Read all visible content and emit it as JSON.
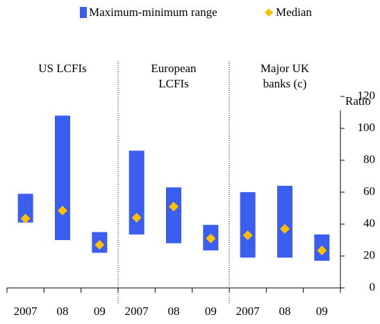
{
  "chart_data": {
    "type": "range",
    "y_unit_label": "Ratio",
    "categories": [
      "2007",
      "08",
      "09",
      "2007",
      "08",
      "09",
      "2007",
      "08",
      "09"
    ],
    "groups": [
      {
        "lines": [
          "US LCFIs"
        ],
        "size": 3
      },
      {
        "lines": [
          "European",
          "LCFIs"
        ],
        "size": 3
      },
      {
        "lines": [
          "Major UK",
          "banks (c)"
        ],
        "size": 3
      }
    ],
    "range": {
      "name": "Maximum-minimum range",
      "color": "#3b5ef0",
      "low": [
        41,
        30,
        22,
        33.5,
        28,
        23.5,
        19,
        19,
        17
      ],
      "high": [
        59,
        108,
        35,
        86,
        63,
        39.5,
        60,
        64,
        33.5
      ]
    },
    "median": {
      "name": "Median",
      "color": "#ffc000",
      "values": [
        43.5,
        48.5,
        27,
        44,
        51,
        31,
        33,
        37,
        23.5
      ]
    },
    "ylim": [
      0,
      120
    ],
    "yticks": [
      0,
      20,
      40,
      60,
      80,
      100,
      120
    ]
  }
}
